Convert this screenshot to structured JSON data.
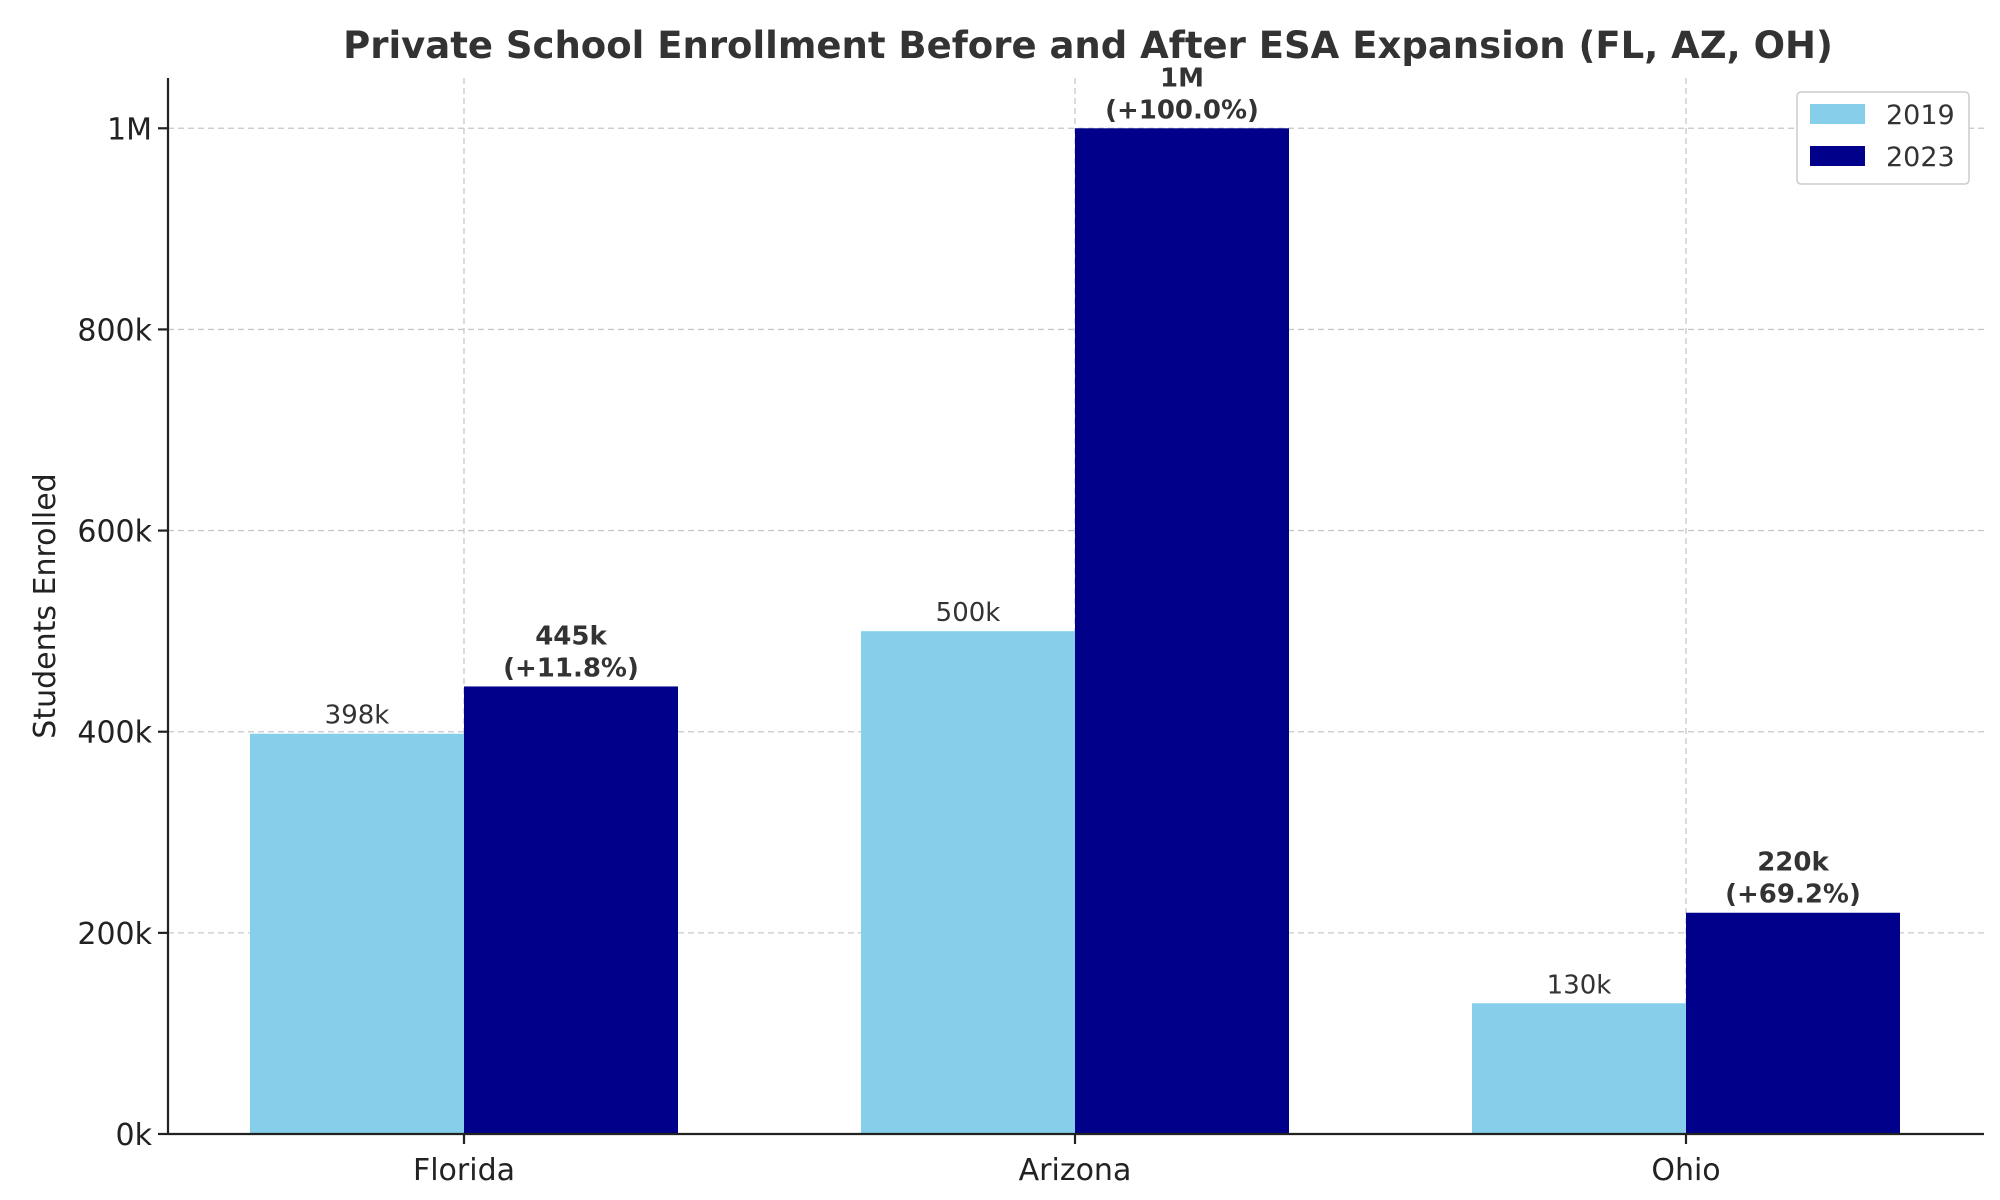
{
  "chart_data": {
    "type": "bar",
    "title": "Private School Enrollment Before and After ESA Expansion (FL, AZ, OH)",
    "xlabel": "",
    "ylabel": "Students Enrolled",
    "categories": [
      "Florida",
      "Arizona",
      "Ohio"
    ],
    "series": [
      {
        "name": "2019",
        "color": "#87CEEB",
        "values": [
          398000,
          500000,
          130000
        ],
        "labels": [
          "398k",
          "500k",
          "130k"
        ]
      },
      {
        "name": "2023",
        "color": "#00008B",
        "values": [
          445000,
          1000000,
          220000
        ],
        "labels": [
          "445k",
          "1M",
          "220k"
        ],
        "change_labels": [
          "(+11.8%)",
          "(+100.0%)",
          "(+69.2%)"
        ]
      }
    ],
    "ylim": [
      0,
      1050000
    ],
    "yticks": [
      0,
      200000,
      400000,
      600000,
      800000,
      1000000
    ],
    "ytick_labels": [
      "0k",
      "200k",
      "400k",
      "600k",
      "800k",
      "1M"
    ],
    "grid": true,
    "legend_position": "top-right"
  }
}
